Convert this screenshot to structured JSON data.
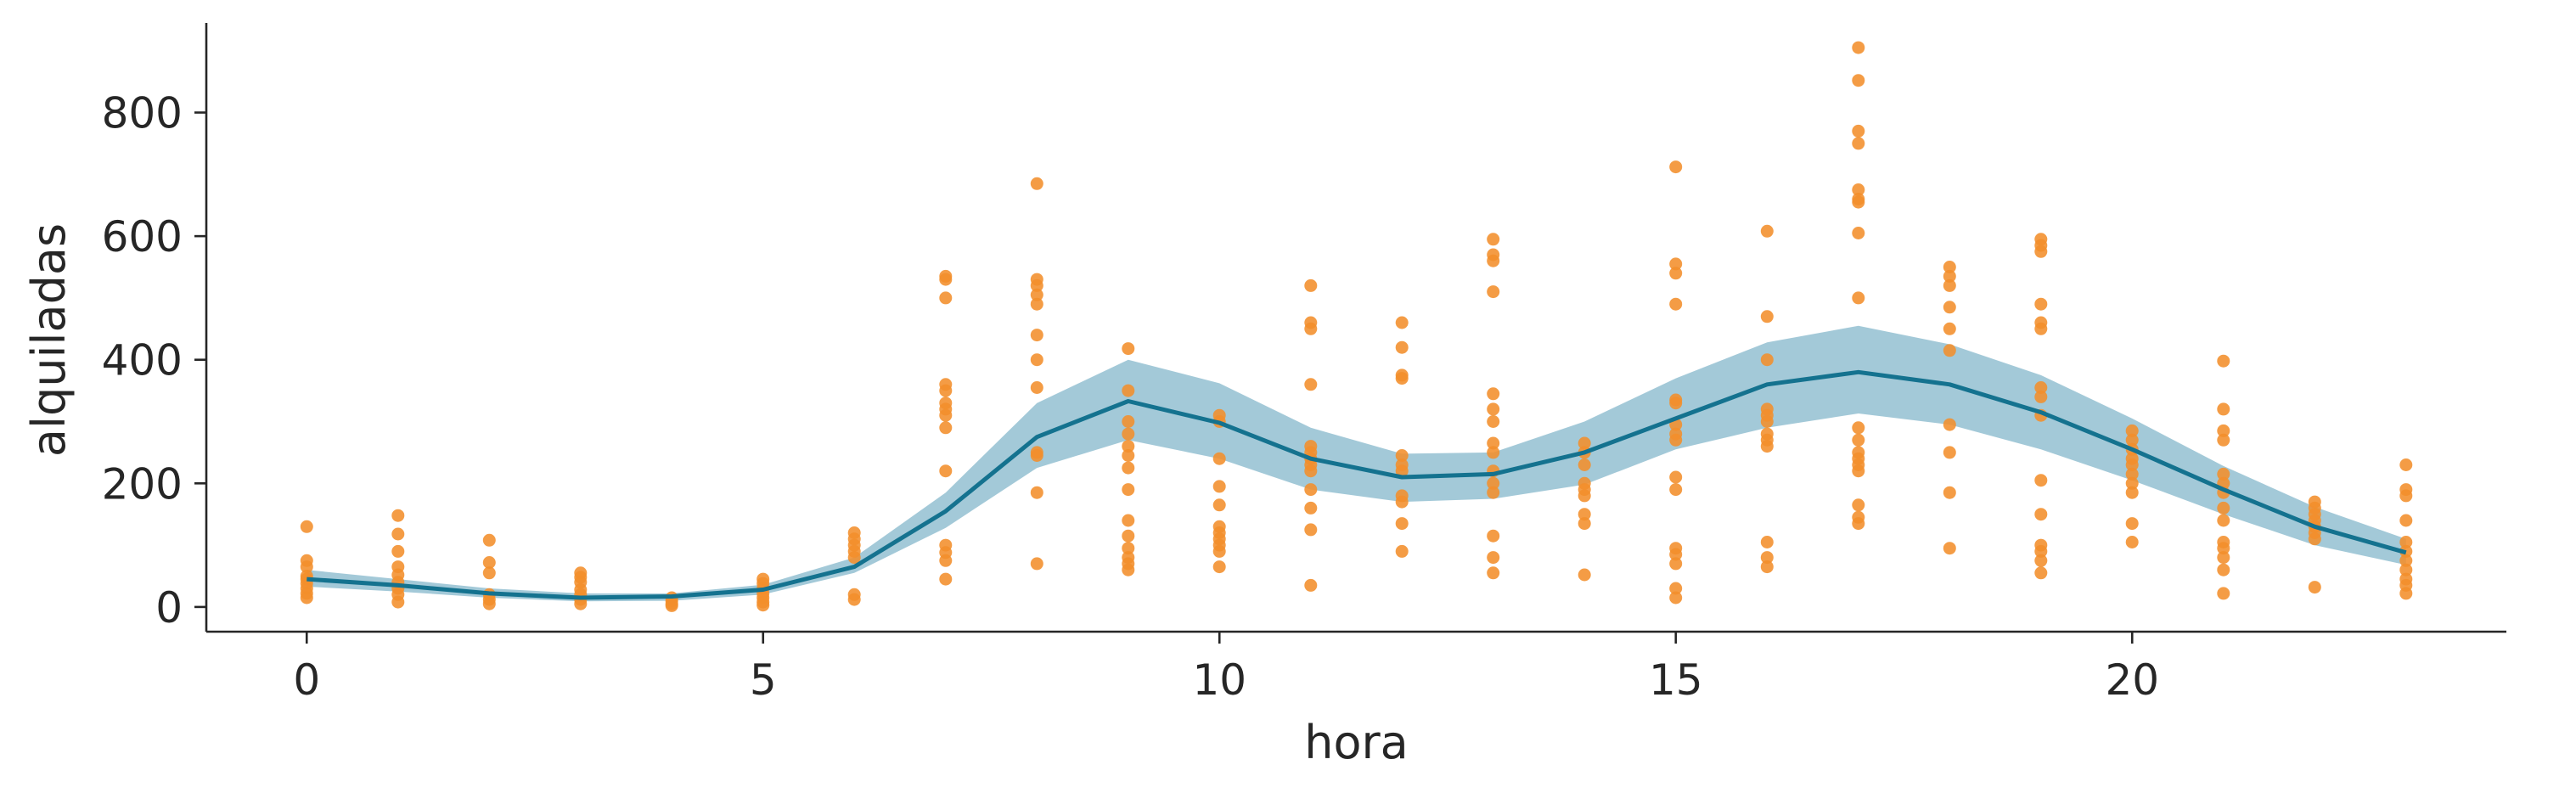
{
  "chart_data": {
    "type": "scatter",
    "xlabel": "hora",
    "ylabel": "alquiladas",
    "xlim": [
      -1.1,
      24.1
    ],
    "ylim": [
      -40,
      945
    ],
    "xticks": [
      0,
      5,
      10,
      15,
      20
    ],
    "yticks": [
      0,
      200,
      400,
      600,
      800
    ],
    "grid": false,
    "legend": "none",
    "colors": {
      "points": "#f28e2b",
      "line": "#14728f",
      "band": "#4f97b4"
    },
    "series": [
      {
        "kind": "points",
        "points": [
          [
            0,
            130
          ],
          [
            0,
            75
          ],
          [
            0,
            65
          ],
          [
            0,
            50
          ],
          [
            0,
            45
          ],
          [
            0,
            38
          ],
          [
            0,
            30
          ],
          [
            0,
            22
          ],
          [
            0,
            15
          ],
          [
            1,
            148
          ],
          [
            1,
            118
          ],
          [
            1,
            90
          ],
          [
            1,
            65
          ],
          [
            1,
            52
          ],
          [
            1,
            40
          ],
          [
            1,
            30
          ],
          [
            1,
            20
          ],
          [
            1,
            8
          ],
          [
            2,
            108
          ],
          [
            2,
            72
          ],
          [
            2,
            55
          ],
          [
            2,
            20
          ],
          [
            2,
            12
          ],
          [
            2,
            5
          ],
          [
            3,
            55
          ],
          [
            3,
            48
          ],
          [
            3,
            40
          ],
          [
            3,
            28
          ],
          [
            3,
            20
          ],
          [
            3,
            12
          ],
          [
            3,
            5
          ],
          [
            4,
            15
          ],
          [
            4,
            10
          ],
          [
            4,
            5
          ],
          [
            4,
            2
          ],
          [
            5,
            45
          ],
          [
            5,
            38
          ],
          [
            5,
            30
          ],
          [
            5,
            22
          ],
          [
            5,
            15
          ],
          [
            5,
            8
          ],
          [
            5,
            3
          ],
          [
            6,
            120
          ],
          [
            6,
            110
          ],
          [
            6,
            100
          ],
          [
            6,
            90
          ],
          [
            6,
            80
          ],
          [
            6,
            20
          ],
          [
            6,
            12
          ],
          [
            7,
            535
          ],
          [
            7,
            530
          ],
          [
            7,
            500
          ],
          [
            7,
            360
          ],
          [
            7,
            350
          ],
          [
            7,
            330
          ],
          [
            7,
            320
          ],
          [
            7,
            310
          ],
          [
            7,
            290
          ],
          [
            7,
            220
          ],
          [
            7,
            100
          ],
          [
            7,
            88
          ],
          [
            7,
            75
          ],
          [
            7,
            45
          ],
          [
            8,
            685
          ],
          [
            8,
            530
          ],
          [
            8,
            520
          ],
          [
            8,
            505
          ],
          [
            8,
            490
          ],
          [
            8,
            440
          ],
          [
            8,
            400
          ],
          [
            8,
            355
          ],
          [
            8,
            250
          ],
          [
            8,
            245
          ],
          [
            8,
            185
          ],
          [
            8,
            70
          ],
          [
            9,
            418
          ],
          [
            9,
            350
          ],
          [
            9,
            300
          ],
          [
            9,
            280
          ],
          [
            9,
            260
          ],
          [
            9,
            245
          ],
          [
            9,
            225
          ],
          [
            9,
            190
          ],
          [
            9,
            140
          ],
          [
            9,
            115
          ],
          [
            9,
            95
          ],
          [
            9,
            80
          ],
          [
            9,
            70
          ],
          [
            9,
            60
          ],
          [
            10,
            310
          ],
          [
            10,
            300
          ],
          [
            10,
            240
          ],
          [
            10,
            195
          ],
          [
            10,
            165
          ],
          [
            10,
            130
          ],
          [
            10,
            120
          ],
          [
            10,
            110
          ],
          [
            10,
            100
          ],
          [
            10,
            90
          ],
          [
            10,
            65
          ],
          [
            11,
            520
          ],
          [
            11,
            460
          ],
          [
            11,
            450
          ],
          [
            11,
            360
          ],
          [
            11,
            260
          ],
          [
            11,
            250
          ],
          [
            11,
            240
          ],
          [
            11,
            230
          ],
          [
            11,
            220
          ],
          [
            11,
            190
          ],
          [
            11,
            160
          ],
          [
            11,
            125
          ],
          [
            11,
            35
          ],
          [
            12,
            460
          ],
          [
            12,
            420
          ],
          [
            12,
            375
          ],
          [
            12,
            370
          ],
          [
            12,
            245
          ],
          [
            12,
            230
          ],
          [
            12,
            220
          ],
          [
            12,
            180
          ],
          [
            12,
            170
          ],
          [
            12,
            135
          ],
          [
            12,
            90
          ],
          [
            13,
            595
          ],
          [
            13,
            570
          ],
          [
            13,
            560
          ],
          [
            13,
            510
          ],
          [
            13,
            345
          ],
          [
            13,
            320
          ],
          [
            13,
            300
          ],
          [
            13,
            265
          ],
          [
            13,
            250
          ],
          [
            13,
            220
          ],
          [
            13,
            200
          ],
          [
            13,
            185
          ],
          [
            13,
            115
          ],
          [
            13,
            80
          ],
          [
            13,
            55
          ],
          [
            14,
            265
          ],
          [
            14,
            250
          ],
          [
            14,
            230
          ],
          [
            14,
            200
          ],
          [
            14,
            190
          ],
          [
            14,
            180
          ],
          [
            14,
            150
          ],
          [
            14,
            135
          ],
          [
            14,
            52
          ],
          [
            15,
            712
          ],
          [
            15,
            555
          ],
          [
            15,
            540
          ],
          [
            15,
            490
          ],
          [
            15,
            335
          ],
          [
            15,
            330
          ],
          [
            15,
            295
          ],
          [
            15,
            280
          ],
          [
            15,
            270
          ],
          [
            15,
            210
          ],
          [
            15,
            190
          ],
          [
            15,
            95
          ],
          [
            15,
            85
          ],
          [
            15,
            70
          ],
          [
            15,
            30
          ],
          [
            15,
            15
          ],
          [
            16,
            608
          ],
          [
            16,
            470
          ],
          [
            16,
            400
          ],
          [
            16,
            320
          ],
          [
            16,
            310
          ],
          [
            16,
            300
          ],
          [
            16,
            280
          ],
          [
            16,
            270
          ],
          [
            16,
            260
          ],
          [
            16,
            105
          ],
          [
            16,
            80
          ],
          [
            16,
            65
          ],
          [
            17,
            905
          ],
          [
            17,
            852
          ],
          [
            17,
            770
          ],
          [
            17,
            750
          ],
          [
            17,
            675
          ],
          [
            17,
            660
          ],
          [
            17,
            655
          ],
          [
            17,
            605
          ],
          [
            17,
            500
          ],
          [
            17,
            290
          ],
          [
            17,
            270
          ],
          [
            17,
            250
          ],
          [
            17,
            240
          ],
          [
            17,
            230
          ],
          [
            17,
            220
          ],
          [
            17,
            165
          ],
          [
            17,
            145
          ],
          [
            17,
            135
          ],
          [
            18,
            550
          ],
          [
            18,
            535
          ],
          [
            18,
            520
          ],
          [
            18,
            485
          ],
          [
            18,
            450
          ],
          [
            18,
            415
          ],
          [
            18,
            295
          ],
          [
            18,
            250
          ],
          [
            18,
            185
          ],
          [
            18,
            95
          ],
          [
            19,
            595
          ],
          [
            19,
            585
          ],
          [
            19,
            575
          ],
          [
            19,
            490
          ],
          [
            19,
            460
          ],
          [
            19,
            450
          ],
          [
            19,
            355
          ],
          [
            19,
            340
          ],
          [
            19,
            310
          ],
          [
            19,
            205
          ],
          [
            19,
            150
          ],
          [
            19,
            100
          ],
          [
            19,
            90
          ],
          [
            19,
            75
          ],
          [
            19,
            55
          ],
          [
            20,
            285
          ],
          [
            20,
            270
          ],
          [
            20,
            255
          ],
          [
            20,
            240
          ],
          [
            20,
            230
          ],
          [
            20,
            215
          ],
          [
            20,
            200
          ],
          [
            20,
            185
          ],
          [
            20,
            135
          ],
          [
            20,
            105
          ],
          [
            21,
            398
          ],
          [
            21,
            320
          ],
          [
            21,
            285
          ],
          [
            21,
            270
          ],
          [
            21,
            215
          ],
          [
            21,
            200
          ],
          [
            21,
            185
          ],
          [
            21,
            160
          ],
          [
            21,
            140
          ],
          [
            21,
            105
          ],
          [
            21,
            95
          ],
          [
            21,
            80
          ],
          [
            21,
            60
          ],
          [
            21,
            22
          ],
          [
            22,
            170
          ],
          [
            22,
            160
          ],
          [
            22,
            150
          ],
          [
            22,
            140
          ],
          [
            22,
            130
          ],
          [
            22,
            120
          ],
          [
            22,
            110
          ],
          [
            22,
            32
          ],
          [
            23,
            230
          ],
          [
            23,
            190
          ],
          [
            23,
            180
          ],
          [
            23,
            140
          ],
          [
            23,
            105
          ],
          [
            23,
            90
          ],
          [
            23,
            75
          ],
          [
            23,
            60
          ],
          [
            23,
            45
          ],
          [
            23,
            35
          ],
          [
            23,
            22
          ]
        ]
      },
      {
        "kind": "line",
        "x": [
          0,
          1,
          2,
          3,
          4,
          5,
          6,
          7,
          8,
          9,
          10,
          11,
          12,
          13,
          14,
          15,
          16,
          17,
          18,
          19,
          20,
          21,
          22,
          23
        ],
        "y": [
          45,
          35,
          22,
          15,
          17,
          28,
          65,
          155,
          275,
          333,
          298,
          240,
          210,
          215,
          250,
          305,
          360,
          380,
          360,
          315,
          255,
          190,
          130,
          88
        ],
        "band_low": [
          33,
          25,
          15,
          9,
          10,
          20,
          55,
          128,
          225,
          270,
          240,
          190,
          170,
          175,
          198,
          255,
          290,
          313,
          295,
          255,
          205,
          150,
          100,
          68
        ],
        "band_high": [
          60,
          45,
          30,
          22,
          22,
          36,
          80,
          185,
          330,
          400,
          362,
          290,
          248,
          250,
          300,
          370,
          428,
          455,
          425,
          375,
          305,
          228,
          162,
          110
        ]
      }
    ]
  }
}
